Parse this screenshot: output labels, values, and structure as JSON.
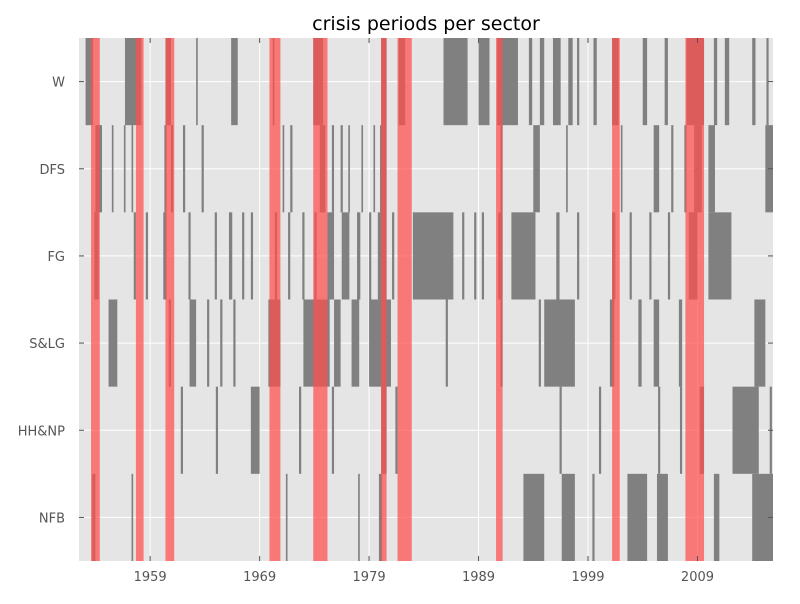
{
  "chart_data": {
    "type": "heatmap",
    "title": "crisis periods per sector",
    "xlabel": "",
    "ylabel": "",
    "xlim": [
      1952.5,
      2015.9
    ],
    "x_ticks": [
      1959,
      1969,
      1979,
      1989,
      1999,
      2009
    ],
    "y_categories": [
      "W",
      "DFS",
      "FG",
      "S&LG",
      "HH&NP",
      "NFB"
    ],
    "grid": true,
    "colors": {
      "background": "#e5e5e5",
      "crisis": "#808080",
      "recession": "#ff4d4d",
      "grid": "#ffffff"
    },
    "recessions": [
      [
        1953.6,
        1954.4
      ],
      [
        1957.7,
        1958.4
      ],
      [
        1960.4,
        1961.2
      ],
      [
        1969.9,
        1970.9
      ],
      [
        1973.9,
        1975.2
      ],
      [
        1980.1,
        1980.6
      ],
      [
        1981.6,
        1982.9
      ],
      [
        1990.6,
        1991.2
      ],
      [
        2001.2,
        2001.9
      ],
      [
        2007.9,
        2009.6
      ]
    ],
    "series": [
      {
        "values": [
          [
            1953.1,
            1953.8
          ],
          [
            1956.7,
            1958.2
          ],
          [
            1960.4,
            1960.9
          ],
          [
            1963.2,
            1963.35
          ],
          [
            1966.4,
            1967.0
          ],
          [
            1970.2,
            1970.35
          ],
          [
            1973.9,
            1974.8
          ],
          [
            1980.1,
            1980.6
          ],
          [
            1981.7,
            1982.3
          ],
          [
            1985.8,
            1988.0
          ],
          [
            1989.0,
            1990.0
          ],
          [
            1990.7,
            1992.6
          ],
          [
            1993.6,
            1993.9
          ],
          [
            1994.6,
            1995.0
          ],
          [
            1995.8,
            1996.5
          ],
          [
            1997.2,
            1997.6
          ],
          [
            1998.0,
            1998.2
          ],
          [
            1999.5,
            1999.8
          ],
          [
            2001.2,
            2001.8
          ],
          [
            2004.0,
            2004.4
          ],
          [
            2006.0,
            2006.3
          ],
          [
            2008.0,
            2009.6
          ],
          [
            2010.5,
            2010.8
          ],
          [
            2011.5,
            2011.9
          ],
          [
            2014.0,
            2014.3
          ],
          [
            2015.3,
            2015.5
          ]
        ]
      },
      {
        "values": [
          [
            1954.0,
            1954.6
          ],
          [
            1955.5,
            1955.65
          ],
          [
            1956.6,
            1956.75
          ],
          [
            1957.3,
            1957.45
          ],
          [
            1960.3,
            1960.5
          ],
          [
            1960.9,
            1961.1
          ],
          [
            1962.0,
            1962.2
          ],
          [
            1963.7,
            1963.9
          ],
          [
            1971.1,
            1971.25
          ],
          [
            1971.8,
            1972.0
          ],
          [
            1974.5,
            1975.0
          ],
          [
            1975.6,
            1975.8
          ],
          [
            1976.4,
            1976.6
          ],
          [
            1977.1,
            1977.25
          ],
          [
            1978.3,
            1978.45
          ],
          [
            1979.4,
            1979.55
          ],
          [
            1980.0,
            1980.6
          ],
          [
            1991.0,
            1991.2
          ],
          [
            1994.0,
            1994.6
          ],
          [
            1997.0,
            1997.15
          ],
          [
            2002.0,
            2002.15
          ],
          [
            2005.0,
            2005.5
          ],
          [
            2006.6,
            2006.8
          ],
          [
            2007.8,
            2008.0
          ],
          [
            2008.7,
            2009.4
          ],
          [
            2010.0,
            2010.6
          ],
          [
            2015.2,
            2015.9
          ]
        ]
      },
      {
        "values": [
          [
            1953.9,
            1954.3
          ],
          [
            1957.5,
            1957.7
          ],
          [
            1958.6,
            1958.8
          ],
          [
            1960.2,
            1960.5
          ],
          [
            1962.5,
            1962.7
          ],
          [
            1964.9,
            1965.1
          ],
          [
            1966.2,
            1966.5
          ],
          [
            1967.4,
            1967.6
          ],
          [
            1968.2,
            1968.4
          ],
          [
            1970.4,
            1970.6
          ],
          [
            1971.6,
            1971.8
          ],
          [
            1972.9,
            1973.1
          ],
          [
            1974.0,
            1974.2
          ],
          [
            1975.2,
            1975.8
          ],
          [
            1976.5,
            1977.2
          ],
          [
            1977.9,
            1978.2
          ],
          [
            1979.0,
            1979.2
          ],
          [
            1979.8,
            1980.6
          ],
          [
            1981.1,
            1981.3
          ],
          [
            1983.0,
            1986.7
          ],
          [
            1987.5,
            1987.7
          ],
          [
            1988.6,
            1988.8
          ],
          [
            1989.3,
            1989.5
          ],
          [
            1990.8,
            1991.2
          ],
          [
            1992.0,
            1994.2
          ],
          [
            1996.1,
            1996.4
          ],
          [
            1998.0,
            1998.2
          ],
          [
            2001.2,
            2001.5
          ],
          [
            2002.8,
            2003.0
          ],
          [
            2004.6,
            2004.8
          ],
          [
            2006.3,
            2006.5
          ],
          [
            2008.2,
            2009.0
          ],
          [
            2010.0,
            2012.1
          ]
        ]
      },
      {
        "values": [
          [
            1955.2,
            1956.0
          ],
          [
            1960.7,
            1960.9
          ],
          [
            1962.6,
            1963.2
          ],
          [
            1964.2,
            1964.4
          ],
          [
            1965.4,
            1965.6
          ],
          [
            1966.6,
            1966.8
          ],
          [
            1969.8,
            1970.9
          ],
          [
            1973.0,
            1975.4
          ],
          [
            1975.8,
            1976.4
          ],
          [
            1977.4,
            1978.1
          ],
          [
            1979.0,
            1981.0
          ],
          [
            1986.0,
            1986.2
          ],
          [
            1991.0,
            1991.2
          ],
          [
            1994.5,
            1994.7
          ],
          [
            1995.0,
            1997.8
          ],
          [
            2001.0,
            2001.4
          ],
          [
            2003.6,
            2003.9
          ],
          [
            2005.0,
            2005.5
          ],
          [
            2007.3,
            2007.6
          ],
          [
            2014.2,
            2015.2
          ]
        ]
      },
      {
        "values": [
          [
            1961.8,
            1962.0
          ],
          [
            1965.0,
            1965.2
          ],
          [
            1968.2,
            1969.0
          ],
          [
            1972.6,
            1972.8
          ],
          [
            1975.6,
            1975.8
          ],
          [
            1980.1,
            1980.6
          ],
          [
            1981.4,
            1981.6
          ],
          [
            1996.4,
            1996.6
          ],
          [
            2000.0,
            2000.2
          ],
          [
            2005.4,
            2005.6
          ],
          [
            2007.4,
            2007.6
          ],
          [
            2009.2,
            2009.6
          ],
          [
            2012.2,
            2014.6
          ],
          [
            2015.6,
            2015.8
          ]
        ]
      },
      {
        "values": [
          [
            1953.7,
            1954.0
          ],
          [
            1957.3,
            1957.45
          ],
          [
            1971.4,
            1971.55
          ],
          [
            1978.0,
            1978.15
          ],
          [
            1979.9,
            1980.2
          ],
          [
            1993.1,
            1995.0
          ],
          [
            1996.6,
            1997.8
          ],
          [
            1999.4,
            1999.6
          ],
          [
            2002.6,
            2004.4
          ],
          [
            2005.3,
            2006.3
          ],
          [
            2010.5,
            2011.0
          ],
          [
            2014.0,
            2015.9
          ]
        ]
      }
    ]
  }
}
